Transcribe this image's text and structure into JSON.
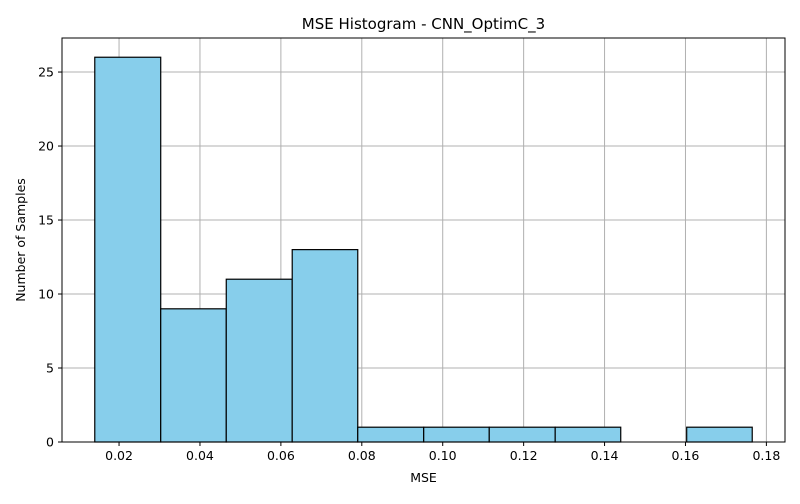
{
  "chart_data": {
    "type": "bar",
    "title": "MSE Histogram - CNN_OptimC_3",
    "xlabel": "MSE",
    "ylabel": "Number of Samples",
    "bins": [
      {
        "x0": 0.014,
        "x1": 0.0303,
        "count": 26
      },
      {
        "x0": 0.0303,
        "x1": 0.0465,
        "count": 9
      },
      {
        "x0": 0.0465,
        "x1": 0.0628,
        "count": 11
      },
      {
        "x0": 0.0628,
        "x1": 0.079,
        "count": 13
      },
      {
        "x0": 0.079,
        "x1": 0.0953,
        "count": 1
      },
      {
        "x0": 0.0953,
        "x1": 0.1115,
        "count": 1
      },
      {
        "x0": 0.1115,
        "x1": 0.1278,
        "count": 1
      },
      {
        "x0": 0.1278,
        "x1": 0.144,
        "count": 1
      },
      {
        "x0": 0.144,
        "x1": 0.1603,
        "count": 0
      },
      {
        "x0": 0.1603,
        "x1": 0.1765,
        "count": 1
      }
    ],
    "xlim": [
      0.0059,
      0.1846
    ],
    "ylim": [
      0,
      27.3
    ],
    "xticks": [
      0.02,
      0.04,
      0.06,
      0.08,
      0.1,
      0.12,
      0.14,
      0.16,
      0.18
    ],
    "xtick_labels": [
      "0.02",
      "0.04",
      "0.06",
      "0.08",
      "0.10",
      "0.12",
      "0.14",
      "0.16",
      "0.18"
    ],
    "yticks": [
      0,
      5,
      10,
      15,
      20,
      25
    ],
    "ytick_labels": [
      "0",
      "5",
      "10",
      "15",
      "20",
      "25"
    ],
    "grid": true,
    "colors": {
      "bar_fill": "#87CEEB",
      "bar_edge": "#000000",
      "grid": "#b0b0b0"
    }
  }
}
